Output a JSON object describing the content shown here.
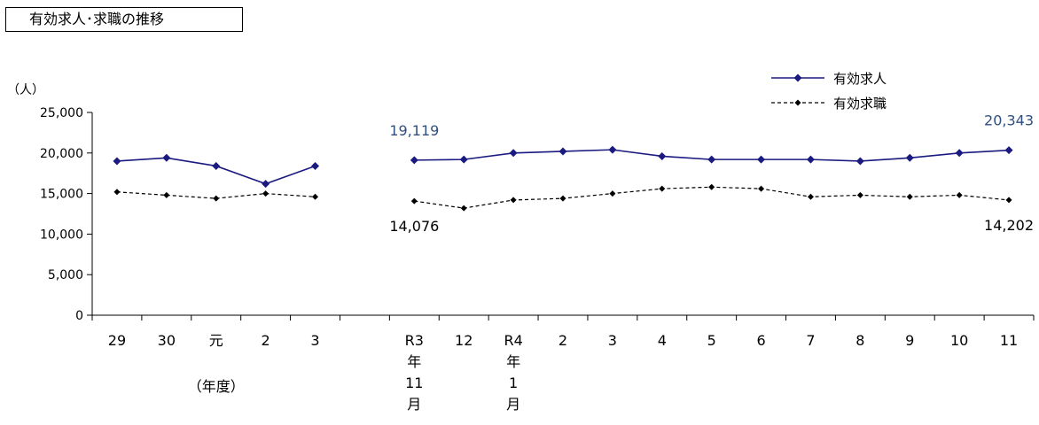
{
  "chart_data": {
    "type": "line",
    "title": "有効求人･求職の推移",
    "ylabel": "（人）",
    "xlabel_left": "（年度）",
    "ylim": [
      0,
      25000
    ],
    "yticks": [
      "0",
      "5,000",
      "10,000",
      "15,000",
      "20,000",
      "25,000"
    ],
    "legend": {
      "placement": "top-right",
      "entries": [
        "有効求人",
        "有効求職"
      ]
    },
    "groups": [
      {
        "categories": [
          [
            "29"
          ],
          [
            "30"
          ],
          [
            "元"
          ],
          [
            "2"
          ],
          [
            "3"
          ]
        ],
        "series": [
          {
            "name": "有効求人",
            "values": [
              19000,
              19400,
              18400,
              16200,
              18400
            ]
          },
          {
            "name": "有効求職",
            "values": [
              15200,
              14800,
              14400,
              15000,
              14600
            ]
          }
        ]
      },
      {
        "categories": [
          [
            "R3",
            "年",
            "11",
            "月"
          ],
          [
            "12"
          ],
          [
            "R4",
            "年",
            "1",
            "月"
          ],
          [
            "2"
          ],
          [
            "3"
          ],
          [
            "4"
          ],
          [
            "5"
          ],
          [
            "6"
          ],
          [
            "7"
          ],
          [
            "8"
          ],
          [
            "9"
          ],
          [
            "10"
          ],
          [
            "11"
          ]
        ],
        "series": [
          {
            "name": "有効求人",
            "values": [
              19119,
              19200,
              20000,
              20200,
              20400,
              19600,
              19200,
              19200,
              19200,
              19000,
              19400,
              20000,
              20343
            ]
          },
          {
            "name": "有効求職",
            "values": [
              14076,
              13200,
              14200,
              14400,
              15000,
              15600,
              15800,
              15600,
              14600,
              14800,
              14600,
              14800,
              14202
            ]
          }
        ]
      }
    ],
    "annotations": [
      {
        "text": "19,119",
        "series": "有効求人",
        "group": 1,
        "index": 0,
        "pos": "above"
      },
      {
        "text": "20,343",
        "series": "有効求人",
        "group": 1,
        "index": 12,
        "pos": "above"
      },
      {
        "text": "14,076",
        "series": "有効求職",
        "group": 1,
        "index": 0,
        "pos": "below"
      },
      {
        "text": "14,202",
        "series": "有効求職",
        "group": 1,
        "index": 12,
        "pos": "below"
      }
    ],
    "colors": {
      "kyujin": "#1a1a80",
      "kyushoku": "#000000",
      "label_blue": "#2f4f7f"
    }
  }
}
